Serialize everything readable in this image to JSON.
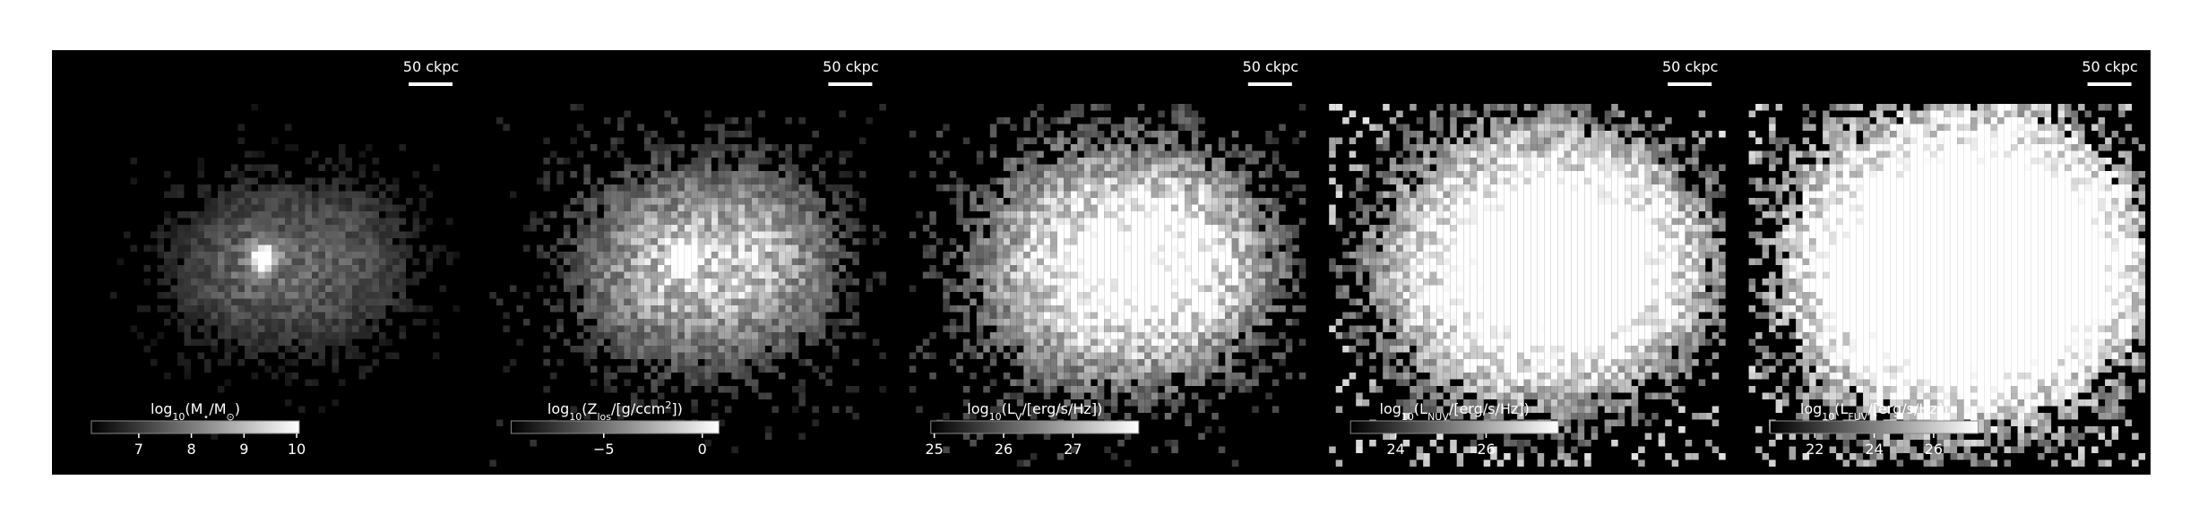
{
  "panels": [
    {
      "scalebar": "50 ckpc",
      "colorbar": {
        "label": [
          {
            "text": "log"
          },
          {
            "text": "10",
            "sub": true
          },
          {
            "text": "(M"
          },
          {
            "text": "⋆",
            "sub": true
          },
          {
            "text": "/M"
          },
          {
            "text": "⊙",
            "sub": true
          },
          {
            "text": ")"
          }
        ],
        "lim": [
          6.1,
          10.05
        ],
        "ticks": [
          7,
          8,
          9,
          10
        ]
      }
    },
    {
      "scalebar": "50 ckpc",
      "colorbar": {
        "label": [
          {
            "text": "log"
          },
          {
            "text": "10",
            "sub": true
          },
          {
            "text": "(Z"
          },
          {
            "text": "los",
            "sub": true
          },
          {
            "text": "/[g/ccm"
          },
          {
            "text": "2",
            "sup": true
          },
          {
            "text": "])"
          }
        ],
        "lim": [
          -9.7,
          0.85
        ],
        "ticks": [
          {
            "value": -5,
            "label": "−5"
          },
          0
        ]
      }
    },
    {
      "scalebar": "50 ckpc",
      "colorbar": {
        "label": [
          {
            "text": "log"
          },
          {
            "text": "10",
            "sub": true
          },
          {
            "text": "(L"
          },
          {
            "text": "V",
            "sub": true
          },
          {
            "text": "/[erg/s/Hz])"
          }
        ],
        "lim": [
          24.95,
          27.95
        ],
        "ticks": [
          25,
          26,
          27
        ]
      }
    },
    {
      "scalebar": "50 ckpc",
      "colorbar": {
        "label": [
          {
            "text": "log"
          },
          {
            "text": "10",
            "sub": true
          },
          {
            "text": "(L"
          },
          {
            "text": "NUV",
            "sub": true
          },
          {
            "text": "/[erg/s/Hz])"
          }
        ],
        "lim": [
          23.0,
          27.6
        ],
        "ticks": [
          24,
          26
        ]
      }
    },
    {
      "scalebar": "50 ckpc",
      "colorbar": {
        "label": [
          {
            "text": "log"
          },
          {
            "text": "10",
            "sub": true
          },
          {
            "text": "(L"
          },
          {
            "text": "FUV",
            "sub": true
          },
          {
            "text": "/[erg/s/Hz])"
          }
        ],
        "lim": [
          20.5,
          27.5
        ],
        "ticks": [
          22,
          24,
          26
        ]
      }
    }
  ]
}
